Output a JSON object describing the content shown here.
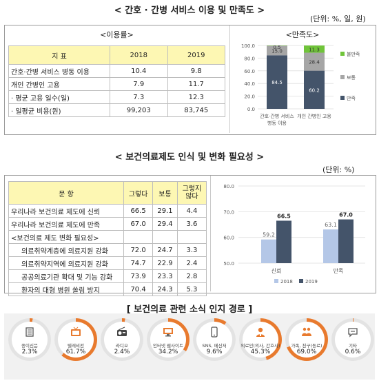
{
  "section1": {
    "title": "< 간호 · 간병 서비스 이용 및 만족도 >",
    "unit": "(단위: %, 일, 원)",
    "usage_title": "<이용률>",
    "satisfaction_title": "<만족도>",
    "table": {
      "headers": [
        "지 표",
        "2018",
        "2019"
      ],
      "rows": [
        [
          "간호·간병 서비스 병동 이용",
          "10.4",
          "9.8"
        ],
        [
          "개인 간병인 고용",
          "7.9",
          "11.7"
        ],
        [
          "· 평균 고용 일수(일)",
          "7.3",
          "12.3"
        ],
        [
          "· 일평균 비용(원)",
          "99,203",
          "83,745"
        ]
      ]
    }
  },
  "satisfaction_chart": {
    "type": "bar",
    "stacked": true,
    "categories": [
      "간호·간병 서비스\n병동 이용",
      "개인 간병인 고용"
    ],
    "category_lines": [
      [
        "간호·간병 서비스",
        "병동 이용"
      ],
      [
        "개인 간병인 고용"
      ]
    ],
    "series": [
      {
        "name": "만족",
        "values": [
          84.5,
          60.2
        ],
        "color": "#44546a"
      },
      {
        "name": "보통",
        "values": [
          15.0,
          28.4
        ],
        "color": "#a6a6a6"
      },
      {
        "name": "불만족",
        "values": [
          0.5,
          11.3
        ],
        "color": "#70c43a"
      }
    ],
    "legend": [
      "불만족",
      "보통",
      "만족"
    ],
    "ylim": [
      0,
      100
    ],
    "yticks": [
      "0.0",
      "20.0",
      "40.0",
      "60.0",
      "80.0",
      "100.0"
    ]
  },
  "section2": {
    "title": "< 보건의료제도 인식 및 변화 필요성 >",
    "unit": "(단위: %)",
    "table": {
      "headers": [
        "문 항",
        "그렇다",
        "보통",
        "그렇지\n않다"
      ],
      "rows": [
        [
          "우리나라 보건의료 제도에 신뢰",
          "66.5",
          "29.1",
          "4.4"
        ],
        [
          "우리나라 보건의료 제도에 만족",
          "67.0",
          "29.4",
          "3.6"
        ],
        [
          "<보건의료 제도 변화 필요성>",
          "",
          "",
          ""
        ],
        [
          "의료취약계층에 의료지원 강화",
          "72.0",
          "24.7",
          "3.3"
        ],
        [
          "의료취약지역에 의료지원 강화",
          "74.7",
          "22.9",
          "2.4"
        ],
        [
          "공공의료기관 확대 및 기능 강화",
          "73.9",
          "23.3",
          "2.8"
        ],
        [
          "환자의 대형 병원 쏠림 방지",
          "70.4",
          "24.3",
          "5.3"
        ]
      ]
    }
  },
  "perception_chart": {
    "type": "bar",
    "categories": [
      "신뢰",
      "만족"
    ],
    "series": [
      {
        "name": "2018",
        "values": [
          59.2,
          63.1
        ],
        "color": "#b4c7e7"
      },
      {
        "name": "2019",
        "values": [
          66.5,
          67.0
        ],
        "color": "#44546a"
      }
    ],
    "ylim": [
      50,
      80
    ],
    "yticks": [
      "50.0",
      "60.0",
      "70.0",
      "80.0"
    ]
  },
  "section3": {
    "title": "[ 보건의료 관련 소식 인지 경로 ]",
    "sources": [
      {
        "label": "종이신문",
        "value": "2.3%",
        "pct": 2.3,
        "icon": "newspaper-icon"
      },
      {
        "label": "텔레비전",
        "value": "61.7%",
        "pct": 61.7,
        "icon": "television-icon"
      },
      {
        "label": "라디오",
        "value": "2.4%",
        "pct": 2.4,
        "icon": "radio-icon"
      },
      {
        "label": "인터넷 웹사이트",
        "value": "34.2%",
        "pct": 34.2,
        "icon": "monitor-icon"
      },
      {
        "label": "SNS, 메신저",
        "value": "9.6%",
        "pct": 9.6,
        "icon": "smartphone-icon"
      },
      {
        "label": "의료인(의사, 간호사)",
        "value": "45.3%",
        "pct": 45.3,
        "icon": "doctor-icon"
      },
      {
        "label": "가족, 친구(동료)",
        "value": "69.0%",
        "pct": 69.0,
        "icon": "family-icon"
      },
      {
        "label": "기타",
        "value": "0.6%",
        "pct": 0.6,
        "icon": "chat-bubble-icon"
      }
    ],
    "ring_color": "#e87a2e",
    "track_color": "#e3e3e3"
  }
}
